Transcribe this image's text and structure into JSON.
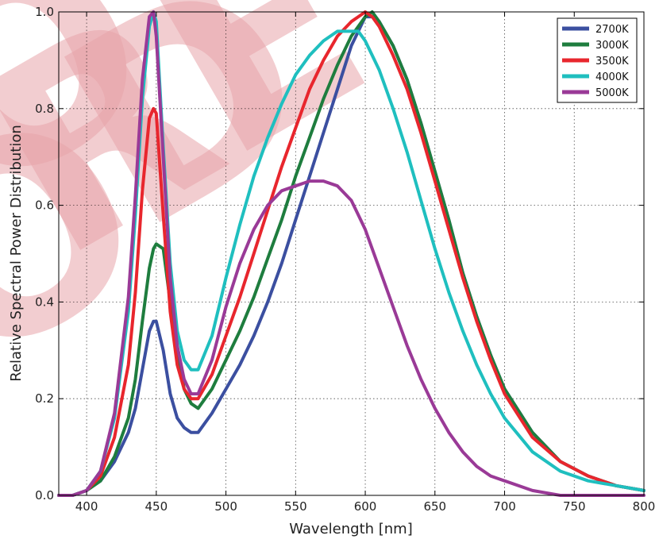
{
  "chart_data": {
    "type": "line",
    "xlabel": "Wavelength [nm]",
    "ylabel": "Relative Spectral Power Distribution",
    "xlim": [
      380,
      800
    ],
    "ylim": [
      0.0,
      1.0
    ],
    "x_ticks": [
      "400",
      "450",
      "500",
      "550",
      "600",
      "650",
      "700",
      "750",
      "800"
    ],
    "y_ticks": [
      "0.0",
      "0.2",
      "0.4",
      "0.6",
      "0.8",
      "1.0"
    ],
    "grid": true,
    "legend_position": "top-right",
    "x": [
      380,
      390,
      400,
      410,
      420,
      430,
      435,
      440,
      445,
      448,
      450,
      455,
      460,
      465,
      470,
      475,
      480,
      490,
      500,
      510,
      520,
      530,
      540,
      550,
      560,
      570,
      580,
      590,
      595,
      600,
      605,
      610,
      620,
      630,
      640,
      650,
      660,
      670,
      680,
      690,
      700,
      720,
      740,
      760,
      780,
      800
    ],
    "series": [
      {
        "name": "2700K",
        "color": "#3b4fa0",
        "values": [
          0.0,
          0.0,
          0.01,
          0.03,
          0.07,
          0.13,
          0.18,
          0.26,
          0.34,
          0.36,
          0.36,
          0.3,
          0.21,
          0.16,
          0.14,
          0.13,
          0.13,
          0.17,
          0.22,
          0.27,
          0.33,
          0.4,
          0.48,
          0.57,
          0.66,
          0.75,
          0.84,
          0.93,
          0.96,
          0.99,
          0.99,
          0.98,
          0.93,
          0.86,
          0.77,
          0.67,
          0.57,
          0.46,
          0.37,
          0.29,
          0.22,
          0.13,
          0.07,
          0.04,
          0.02,
          0.01
        ]
      },
      {
        "name": "3000K",
        "color": "#1e7d3e",
        "values": [
          0.0,
          0.0,
          0.01,
          0.03,
          0.08,
          0.16,
          0.24,
          0.36,
          0.47,
          0.51,
          0.52,
          0.51,
          0.4,
          0.3,
          0.22,
          0.19,
          0.18,
          0.22,
          0.28,
          0.34,
          0.41,
          0.49,
          0.57,
          0.66,
          0.74,
          0.82,
          0.89,
          0.95,
          0.97,
          0.99,
          1.0,
          0.98,
          0.93,
          0.86,
          0.77,
          0.67,
          0.57,
          0.46,
          0.37,
          0.29,
          0.22,
          0.13,
          0.07,
          0.04,
          0.02,
          0.01
        ]
      },
      {
        "name": "3500K",
        "color": "#e8262d",
        "values": [
          0.0,
          0.0,
          0.01,
          0.04,
          0.12,
          0.27,
          0.42,
          0.63,
          0.78,
          0.8,
          0.79,
          0.58,
          0.38,
          0.27,
          0.22,
          0.2,
          0.2,
          0.25,
          0.33,
          0.41,
          0.5,
          0.59,
          0.68,
          0.76,
          0.84,
          0.9,
          0.95,
          0.98,
          0.99,
          1.0,
          0.99,
          0.97,
          0.91,
          0.84,
          0.75,
          0.65,
          0.55,
          0.45,
          0.36,
          0.28,
          0.21,
          0.12,
          0.07,
          0.04,
          0.02,
          0.01
        ]
      },
      {
        "name": "4000K",
        "color": "#1fbfbf",
        "values": [
          0.0,
          0.0,
          0.01,
          0.05,
          0.16,
          0.38,
          0.58,
          0.82,
          0.97,
          1.0,
          0.98,
          0.72,
          0.48,
          0.34,
          0.28,
          0.26,
          0.26,
          0.33,
          0.45,
          0.56,
          0.66,
          0.74,
          0.81,
          0.87,
          0.91,
          0.94,
          0.96,
          0.96,
          0.96,
          0.94,
          0.91,
          0.88,
          0.8,
          0.71,
          0.61,
          0.51,
          0.42,
          0.34,
          0.27,
          0.21,
          0.16,
          0.09,
          0.05,
          0.03,
          0.02,
          0.01
        ]
      },
      {
        "name": "5000K",
        "color": "#9a3a97",
        "values": [
          0.0,
          0.0,
          0.01,
          0.05,
          0.17,
          0.41,
          0.62,
          0.86,
          0.99,
          1.0,
          0.95,
          0.7,
          0.45,
          0.31,
          0.24,
          0.21,
          0.21,
          0.28,
          0.39,
          0.48,
          0.55,
          0.6,
          0.63,
          0.64,
          0.65,
          0.65,
          0.64,
          0.61,
          0.58,
          0.55,
          0.51,
          0.47,
          0.39,
          0.31,
          0.24,
          0.18,
          0.13,
          0.09,
          0.06,
          0.04,
          0.03,
          0.01,
          0.0,
          0.0,
          0.0,
          0.0
        ]
      }
    ]
  },
  "watermark": {
    "text": "ORDE",
    "letters": [
      "O",
      "R",
      "D",
      "E",
      "O"
    ],
    "color": "#e8a5aa"
  }
}
